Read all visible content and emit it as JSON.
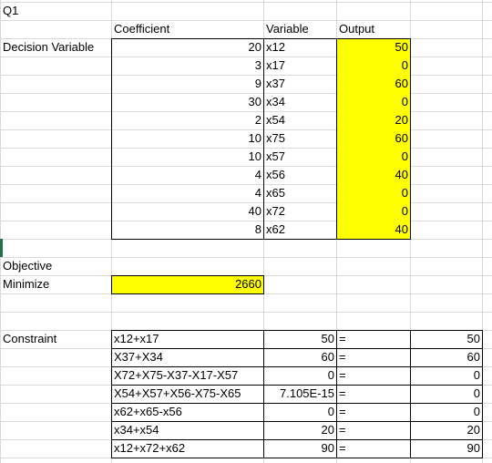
{
  "sheet": {
    "title": "Q1",
    "headers": {
      "coefficient": "Coefficient",
      "variable": "Variable",
      "output": "Output"
    },
    "decision_label": "Decision Variable",
    "decision_rows": [
      {
        "coef": "20",
        "var": "x12",
        "out": "50"
      },
      {
        "coef": "3",
        "var": "x17",
        "out": "0"
      },
      {
        "coef": "9",
        "var": "x37",
        "out": "60"
      },
      {
        "coef": "30",
        "var": "x34",
        "out": "0"
      },
      {
        "coef": "2",
        "var": "x54",
        "out": "20"
      },
      {
        "coef": "10",
        "var": "x75",
        "out": "60"
      },
      {
        "coef": "10",
        "var": "x57",
        "out": "0"
      },
      {
        "coef": "4",
        "var": "x56",
        "out": "40"
      },
      {
        "coef": "4",
        "var": "x65",
        "out": "0"
      },
      {
        "coef": "40",
        "var": "x72",
        "out": "0"
      },
      {
        "coef": "8",
        "var": "x62",
        "out": "40"
      }
    ],
    "objective": {
      "label": "Objective",
      "sense": "Minimize",
      "value": "2660"
    },
    "constraint_label": "Constraint",
    "constraints": [
      {
        "expr": "x12+x17",
        "lhs": "50",
        "op": "=",
        "rhs": "50"
      },
      {
        "expr": "X37+X34",
        "lhs": "60",
        "op": "=",
        "rhs": "60"
      },
      {
        "expr": "X72+X75-X37-X17-X57",
        "lhs": "0",
        "op": "=",
        "rhs": "0"
      },
      {
        "expr": "X54+X57+X56-X75-X65",
        "lhs": "7.105E-15",
        "op": "=",
        "rhs": "0"
      },
      {
        "expr": "x62+x65-x56",
        "lhs": "0",
        "op": "=",
        "rhs": "0"
      },
      {
        "expr": "x34+x54",
        "lhs": "20",
        "op": "=",
        "rhs": "20"
      },
      {
        "expr": "x12+x72+x62",
        "lhs": "90",
        "op": "=",
        "rhs": "90"
      }
    ]
  },
  "colors": {
    "highlight": "#ffff00",
    "gridline": "#d9d9d9",
    "border": "#000000",
    "active_cell_marker": "#217346"
  }
}
